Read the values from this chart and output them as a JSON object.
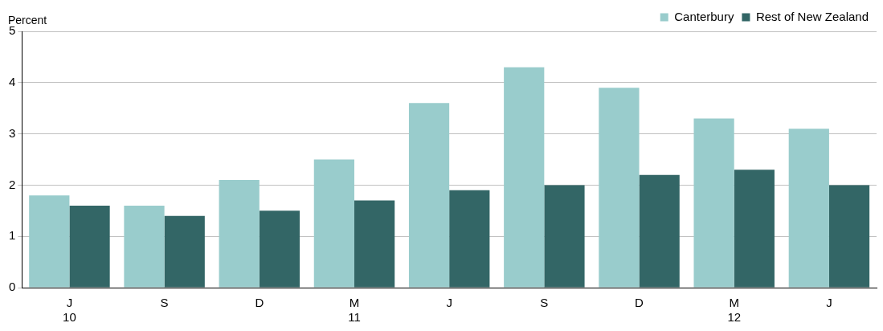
{
  "chart_data": {
    "type": "bar",
    "ylabel": "Percent",
    "categories": [
      "J\n10",
      "S",
      "D",
      "M\n11",
      "J",
      "S",
      "D",
      "M\n12",
      "J"
    ],
    "series": [
      {
        "name": "Canterbury",
        "color": "#99cccc",
        "values": [
          1.8,
          1.6,
          2.1,
          2.5,
          3.6,
          4.3,
          3.9,
          3.3,
          3.1
        ]
      },
      {
        "name": "Rest of New Zealand",
        "color": "#336666",
        "values": [
          1.6,
          1.4,
          1.5,
          1.7,
          1.9,
          2.0,
          2.2,
          2.3,
          2.0
        ]
      }
    ],
    "ylim": [
      0,
      5
    ],
    "yticks": [
      0,
      1,
      2,
      3,
      4,
      5
    ],
    "grid": "y",
    "legend": "top right"
  }
}
